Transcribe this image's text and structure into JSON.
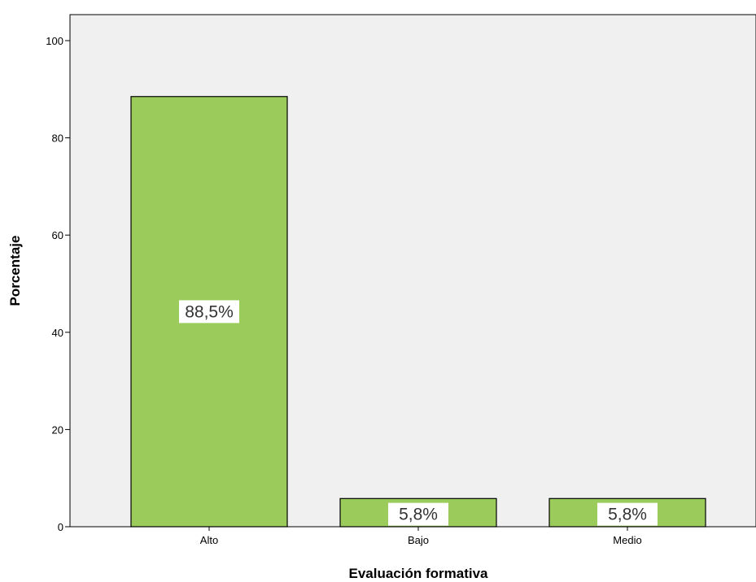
{
  "chart_data": {
    "type": "bar",
    "categories": [
      "Alto",
      "Bajo",
      "Medio"
    ],
    "values": [
      88.5,
      5.8,
      5.8
    ],
    "data_labels": [
      "88,5%",
      "5,8%",
      "5,8%"
    ],
    "title": "",
    "xlabel": "Evaluación formativa",
    "ylabel": "Porcentaje",
    "ylim": [
      0,
      100
    ],
    "yticks": [
      0,
      20,
      40,
      60,
      80,
      100
    ],
    "grid": false,
    "legend": "none",
    "colors": {
      "bar_fill": "#9bcc5b",
      "bar_stroke": "#000000",
      "plot_background": "#f0f0f0",
      "label_background": "#ffffff"
    }
  }
}
